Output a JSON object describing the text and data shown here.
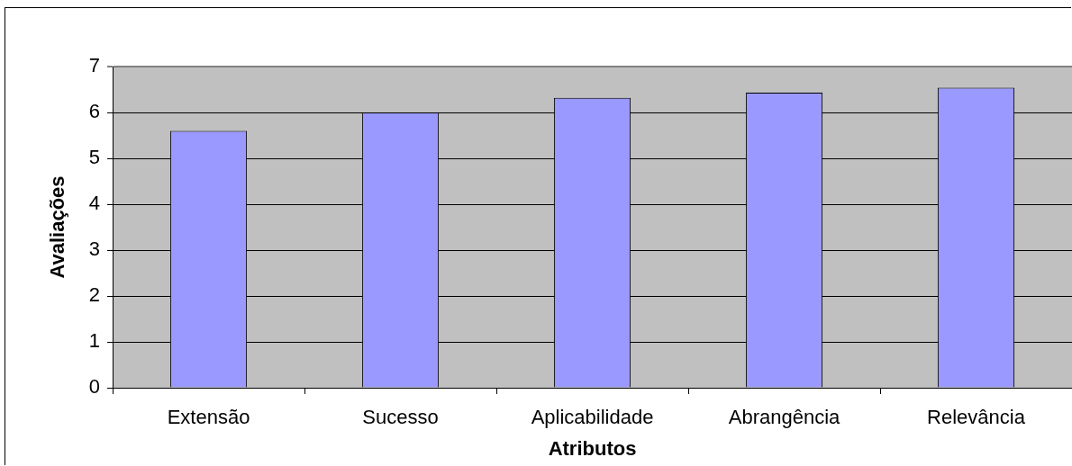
{
  "chart_data": {
    "type": "bar",
    "xlabel": "Atributos",
    "ylabel": "Avaliações",
    "categories": [
      "Extensão",
      "Sucesso",
      "Aplicabilidade",
      "Abrangência",
      "Relevância"
    ],
    "values": [
      5.6,
      6.0,
      6.32,
      6.43,
      6.54
    ],
    "color": "#9999ff",
    "ylim": [
      0,
      7
    ],
    "yticks": [
      0,
      1,
      2,
      3,
      4,
      5,
      6,
      7
    ],
    "grid": "y"
  }
}
